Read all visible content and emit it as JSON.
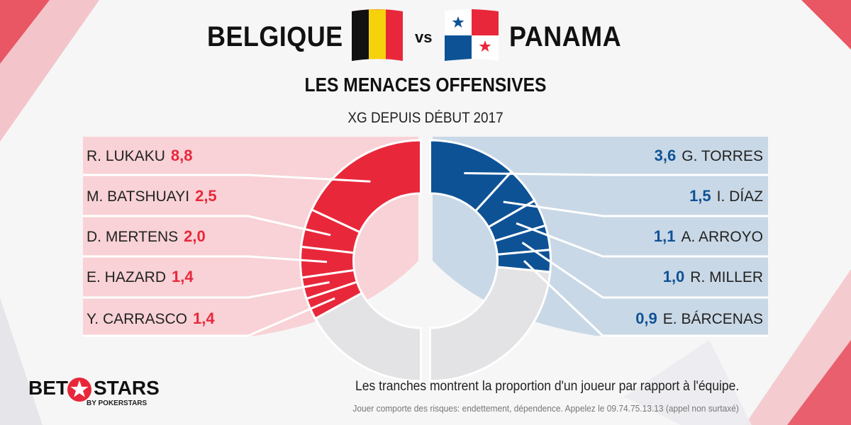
{
  "header": {
    "team_left": "BELGIQUE",
    "vs": "vs",
    "team_right": "PANAMA",
    "subtitle": "LES MENACES OFFENSIVES",
    "caption": "XG DEPUIS DÉBUT 2017"
  },
  "colors": {
    "belgium_red": "#e8283a",
    "belgium_panel": "#f8d2d6",
    "panama_blue": "#0e5296",
    "panama_panel": "#c9d8e6",
    "remainder_gray": "#e3e3e5"
  },
  "chart_data": {
    "type": "pie",
    "subtype": "split-donut",
    "title": "LES MENACES OFFENSIVES",
    "subtitle": "XG DEPUIS DÉBUT 2017",
    "series": [
      {
        "name": "BELGIQUE",
        "side": "left",
        "color": "#e8283a",
        "players": [
          {
            "name": "R. LUKAKU",
            "value": 8.8,
            "label": "8,8"
          },
          {
            "name": "M. BATSHUAYI",
            "value": 2.5,
            "label": "2,5"
          },
          {
            "name": "D. MERTENS",
            "value": 2.0,
            "label": "2,0"
          },
          {
            "name": "E. HAZARD",
            "value": 1.4,
            "label": "1,4"
          },
          {
            "name": "Y. CARRASCO",
            "value": 1.4,
            "label": "1,4"
          }
        ],
        "other_share": 0.34
      },
      {
        "name": "PANAMA",
        "side": "right",
        "color": "#0e5296",
        "players": [
          {
            "name": "G. TORRES",
            "value": 3.6,
            "label": "3,6"
          },
          {
            "name": "I. DÍAZ",
            "value": 1.5,
            "label": "1,5"
          },
          {
            "name": "A. ARROYO",
            "value": 1.1,
            "label": "1,1"
          },
          {
            "name": "R. MILLER",
            "value": 1.0,
            "label": "1,0"
          },
          {
            "name": "E. BÁRCENAS",
            "value": 0.9,
            "label": "0,9"
          }
        ],
        "other_share": 0.47
      }
    ]
  },
  "footer": {
    "note": "Les tranches montrent la proportion d'un joueur par rapport à l'équipe.",
    "disclaimer": "Jouer comporte des risques: endettement, dépendence. Appelez le 09.74.75.13.13  (appel non surtaxé)"
  },
  "logo": {
    "bet": "BET",
    "stars": "STARS",
    "sub": "BY POKERSTARS"
  }
}
